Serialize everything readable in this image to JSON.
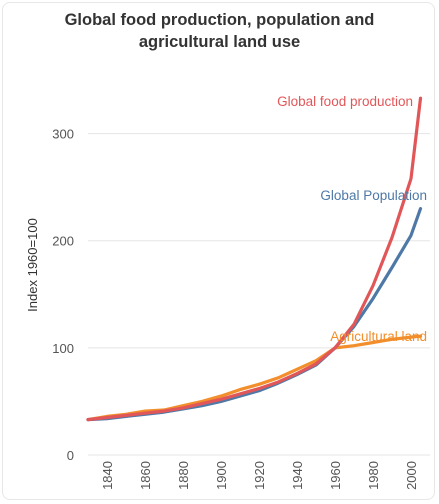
{
  "chart_data": {
    "type": "line",
    "title": "Global food production, population and agricultural land use",
    "xlabel": "",
    "ylabel": "Index 1960=100",
    "xlim": [
      1830,
      2010
    ],
    "ylim": [
      0,
      350
    ],
    "x_ticks": [
      1840,
      1860,
      1880,
      1900,
      1920,
      1940,
      1960,
      1980,
      2000
    ],
    "y_ticks": [
      0,
      100,
      200,
      300
    ],
    "grid": true,
    "legend": "inline-labels",
    "series": [
      {
        "name": "Global food production",
        "color": "#e15759",
        "x": [
          1830,
          1840,
          1850,
          1860,
          1870,
          1880,
          1890,
          1900,
          1910,
          1920,
          1930,
          1940,
          1950,
          1960,
          1970,
          1980,
          1990,
          2000,
          2005
        ],
        "values": [
          33,
          35,
          37,
          39,
          41,
          44,
          48,
          52,
          57,
          62,
          68,
          76,
          85,
          100,
          122,
          158,
          203,
          258,
          333
        ]
      },
      {
        "name": "Global Population",
        "color": "#4e79a7",
        "x": [
          1830,
          1840,
          1850,
          1860,
          1870,
          1880,
          1890,
          1900,
          1910,
          1920,
          1930,
          1940,
          1950,
          1960,
          1970,
          1980,
          1990,
          2000,
          2005
        ],
        "values": [
          33,
          34,
          36,
          38,
          40,
          43,
          46,
          50,
          55,
          60,
          67,
          75,
          84,
          100,
          120,
          146,
          175,
          205,
          230
        ]
      },
      {
        "name": "Agricultural land",
        "color": "#f28e2b",
        "x": [
          1830,
          1840,
          1850,
          1860,
          1870,
          1880,
          1890,
          1900,
          1910,
          1920,
          1930,
          1940,
          1950,
          1960,
          1970,
          1980,
          1990,
          2000,
          2005
        ],
        "values": [
          33,
          36,
          38,
          41,
          42,
          46,
          50,
          55,
          61,
          66,
          72,
          80,
          88,
          100,
          102,
          105,
          108,
          110,
          111
        ]
      }
    ]
  }
}
